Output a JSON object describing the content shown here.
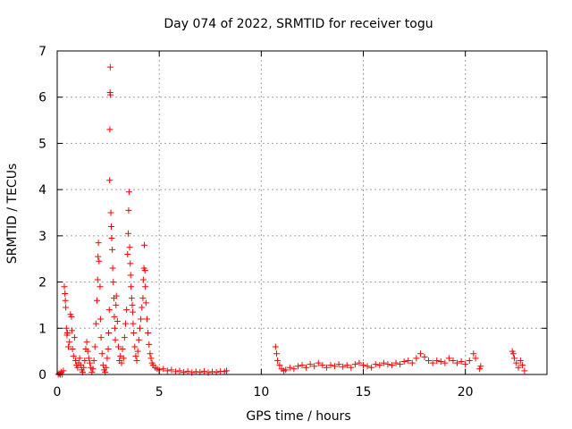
{
  "chart_data": {
    "type": "scatter",
    "title": "Day 074 of 2022, SRMTID for receiver togu",
    "xlabel": "GPS time / hours",
    "ylabel": "SRMTID / TECUs",
    "xlim": [
      0,
      24
    ],
    "ylim": [
      0,
      7
    ],
    "xticks": [
      "0",
      "5",
      "10",
      "15",
      "20"
    ],
    "yticks": [
      "0",
      "1",
      "2",
      "3",
      "4",
      "5",
      "6",
      "7"
    ],
    "grid": true,
    "marker": "+",
    "color": "#ff0000",
    "points": [
      [
        0.05,
        0.0
      ],
      [
        0.1,
        0.02
      ],
      [
        0.15,
        0.0
      ],
      [
        0.2,
        0.05
      ],
      [
        0.25,
        0.0
      ],
      [
        0.3,
        0.08
      ],
      [
        0.35,
        1.9
      ],
      [
        0.38,
        1.75
      ],
      [
        0.4,
        1.6
      ],
      [
        0.42,
        1.45
      ],
      [
        0.45,
        1.0
      ],
      [
        0.48,
        0.85
      ],
      [
        0.5,
        0.9
      ],
      [
        0.55,
        0.6
      ],
      [
        0.6,
        0.7
      ],
      [
        0.65,
        1.3
      ],
      [
        0.7,
        1.25
      ],
      [
        0.72,
        0.95
      ],
      [
        0.75,
        0.55
      ],
      [
        0.8,
        0.4
      ],
      [
        0.85,
        0.8
      ],
      [
        0.9,
        0.3
      ],
      [
        0.95,
        0.2
      ],
      [
        1.0,
        0.15
      ],
      [
        1.05,
        0.25
      ],
      [
        1.1,
        0.35
      ],
      [
        1.15,
        0.2
      ],
      [
        1.2,
        0.1
      ],
      [
        1.25,
        0.05
      ],
      [
        1.3,
        0.15
      ],
      [
        1.35,
        0.3
      ],
      [
        1.4,
        0.55
      ],
      [
        1.45,
        0.7
      ],
      [
        1.5,
        0.5
      ],
      [
        1.55,
        0.35
      ],
      [
        1.6,
        0.25
      ],
      [
        1.65,
        0.15
      ],
      [
        1.7,
        0.05
      ],
      [
        1.75,
        0.12
      ],
      [
        1.8,
        0.3
      ],
      [
        1.85,
        0.6
      ],
      [
        1.9,
        1.1
      ],
      [
        1.95,
        1.6
      ],
      [
        1.98,
        2.05
      ],
      [
        2.0,
        2.55
      ],
      [
        2.02,
        2.85
      ],
      [
        2.05,
        2.45
      ],
      [
        2.1,
        1.9
      ],
      [
        2.12,
        1.2
      ],
      [
        2.15,
        0.8
      ],
      [
        2.2,
        0.45
      ],
      [
        2.25,
        0.2
      ],
      [
        2.3,
        0.1
      ],
      [
        2.35,
        0.05
      ],
      [
        2.4,
        0.15
      ],
      [
        2.45,
        0.35
      ],
      [
        2.5,
        0.55
      ],
      [
        2.52,
        0.9
      ],
      [
        2.55,
        1.4
      ],
      [
        2.57,
        4.2
      ],
      [
        2.58,
        5.3
      ],
      [
        2.59,
        6.1
      ],
      [
        2.6,
        6.65
      ],
      [
        2.61,
        6.05
      ],
      [
        2.63,
        3.5
      ],
      [
        2.65,
        3.2
      ],
      [
        2.67,
        2.95
      ],
      [
        2.7,
        2.7
      ],
      [
        2.72,
        2.3
      ],
      [
        2.75,
        2.0
      ],
      [
        2.78,
        1.65
      ],
      [
        2.8,
        1.25
      ],
      [
        2.82,
        1.0
      ],
      [
        2.85,
        0.75
      ],
      [
        2.88,
        1.5
      ],
      [
        2.9,
        1.7
      ],
      [
        2.95,
        1.15
      ],
      [
        3.0,
        0.6
      ],
      [
        3.05,
        0.3
      ],
      [
        3.1,
        0.4
      ],
      [
        3.15,
        0.25
      ],
      [
        3.2,
        0.55
      ],
      [
        3.25,
        0.35
      ],
      [
        3.3,
        0.8
      ],
      [
        3.35,
        1.1
      ],
      [
        3.4,
        1.4
      ],
      [
        3.45,
        2.6
      ],
      [
        3.48,
        3.05
      ],
      [
        3.5,
        3.55
      ],
      [
        3.52,
        3.95
      ],
      [
        3.55,
        2.75
      ],
      [
        3.58,
        2.4
      ],
      [
        3.6,
        2.15
      ],
      [
        3.62,
        1.9
      ],
      [
        3.65,
        1.65
      ],
      [
        3.68,
        1.5
      ],
      [
        3.7,
        1.35
      ],
      [
        3.72,
        1.1
      ],
      [
        3.75,
        0.9
      ],
      [
        3.8,
        0.6
      ],
      [
        3.85,
        0.4
      ],
      [
        3.9,
        0.3
      ],
      [
        3.95,
        0.5
      ],
      [
        4.0,
        0.75
      ],
      [
        4.05,
        1.0
      ],
      [
        4.1,
        1.2
      ],
      [
        4.15,
        1.45
      ],
      [
        4.2,
        1.65
      ],
      [
        4.22,
        2.05
      ],
      [
        4.25,
        2.3
      ],
      [
        4.27,
        2.8
      ],
      [
        4.3,
        2.25
      ],
      [
        4.32,
        1.9
      ],
      [
        4.35,
        1.55
      ],
      [
        4.4,
        1.2
      ],
      [
        4.45,
        0.9
      ],
      [
        4.5,
        0.65
      ],
      [
        4.55,
        0.45
      ],
      [
        4.6,
        0.35
      ],
      [
        4.65,
        0.25
      ],
      [
        4.7,
        0.2
      ],
      [
        4.8,
        0.15
      ],
      [
        4.9,
        0.12
      ],
      [
        5.0,
        0.1
      ],
      [
        5.2,
        0.12
      ],
      [
        5.4,
        0.08
      ],
      [
        5.6,
        0.1
      ],
      [
        5.8,
        0.06
      ],
      [
        6.0,
        0.08
      ],
      [
        6.2,
        0.05
      ],
      [
        6.4,
        0.07
      ],
      [
        6.6,
        0.04
      ],
      [
        6.8,
        0.06
      ],
      [
        7.0,
        0.05
      ],
      [
        7.2,
        0.07
      ],
      [
        7.4,
        0.04
      ],
      [
        7.6,
        0.06
      ],
      [
        7.8,
        0.05
      ],
      [
        8.0,
        0.07
      ],
      [
        8.2,
        0.06
      ],
      [
        8.3,
        0.08
      ],
      [
        10.7,
        0.6
      ],
      [
        10.75,
        0.45
      ],
      [
        10.8,
        0.3
      ],
      [
        10.9,
        0.2
      ],
      [
        11.0,
        0.12
      ],
      [
        11.1,
        0.08
      ],
      [
        11.2,
        0.1
      ],
      [
        11.4,
        0.15
      ],
      [
        11.6,
        0.12
      ],
      [
        11.8,
        0.18
      ],
      [
        12.0,
        0.2
      ],
      [
        12.2,
        0.15
      ],
      [
        12.4,
        0.22
      ],
      [
        12.6,
        0.18
      ],
      [
        12.8,
        0.25
      ],
      [
        13.0,
        0.2
      ],
      [
        13.2,
        0.15
      ],
      [
        13.4,
        0.2
      ],
      [
        13.6,
        0.18
      ],
      [
        13.8,
        0.22
      ],
      [
        14.0,
        0.17
      ],
      [
        14.2,
        0.2
      ],
      [
        14.4,
        0.15
      ],
      [
        14.6,
        0.22
      ],
      [
        14.8,
        0.25
      ],
      [
        15.0,
        0.2
      ],
      [
        15.2,
        0.18
      ],
      [
        15.4,
        0.15
      ],
      [
        15.6,
        0.22
      ],
      [
        15.8,
        0.2
      ],
      [
        16.0,
        0.25
      ],
      [
        16.2,
        0.22
      ],
      [
        16.4,
        0.2
      ],
      [
        16.6,
        0.25
      ],
      [
        16.8,
        0.22
      ],
      [
        17.0,
        0.28
      ],
      [
        17.2,
        0.3
      ],
      [
        17.4,
        0.25
      ],
      [
        17.6,
        0.35
      ],
      [
        17.8,
        0.45
      ],
      [
        18.0,
        0.38
      ],
      [
        18.2,
        0.3
      ],
      [
        18.4,
        0.25
      ],
      [
        18.6,
        0.3
      ],
      [
        18.8,
        0.28
      ],
      [
        19.0,
        0.25
      ],
      [
        19.2,
        0.35
      ],
      [
        19.4,
        0.3
      ],
      [
        19.6,
        0.25
      ],
      [
        19.8,
        0.28
      ],
      [
        20.0,
        0.22
      ],
      [
        20.2,
        0.3
      ],
      [
        20.4,
        0.45
      ],
      [
        20.5,
        0.35
      ],
      [
        20.7,
        0.12
      ],
      [
        20.75,
        0.18
      ],
      [
        22.3,
        0.5
      ],
      [
        22.35,
        0.45
      ],
      [
        22.4,
        0.35
      ],
      [
        22.5,
        0.25
      ],
      [
        22.6,
        0.15
      ],
      [
        22.7,
        0.3
      ],
      [
        22.8,
        0.2
      ],
      [
        22.9,
        0.08
      ]
    ]
  }
}
